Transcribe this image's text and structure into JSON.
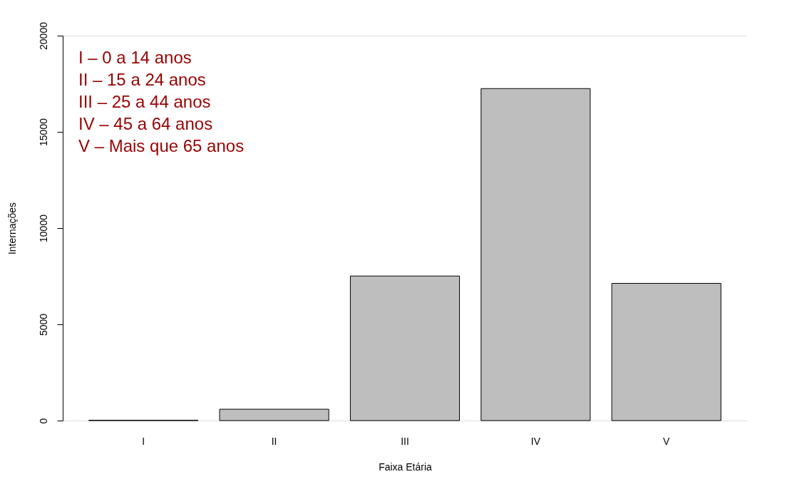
{
  "chart_data": {
    "type": "bar",
    "xlabel": "Faixa Etária",
    "ylabel": "Internações",
    "categories": [
      "I",
      "II",
      "III",
      "IV",
      "V"
    ],
    "values": [
      20,
      590,
      7510,
      17250,
      7130
    ],
    "color": "#bebebe",
    "ylim": [
      0,
      20000
    ],
    "yticks": [
      0,
      5000,
      10000,
      15000,
      20000
    ],
    "grid": false,
    "annotations": [
      "I – 0 a 14 anos",
      "II – 15 a 24 anos",
      "III – 25 a 44 anos",
      "IV – 45 a 64 anos",
      "V – Mais que 65 anos"
    ]
  }
}
